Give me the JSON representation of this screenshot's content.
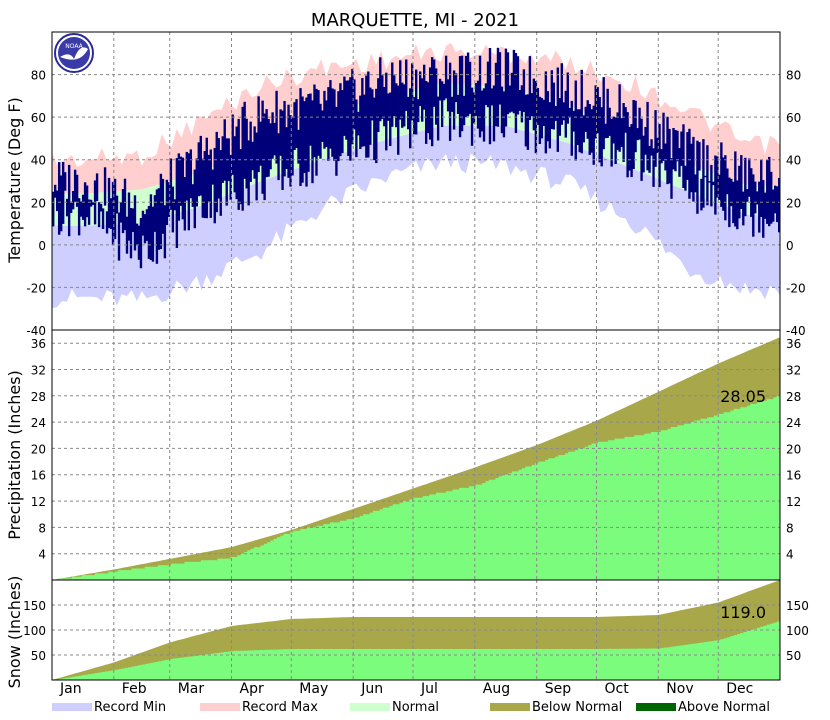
{
  "colors": {
    "record_min": "#cfcfff",
    "record_max": "#ffcfcf",
    "normal": "#cfffcf",
    "actual": "#00007a",
    "precip_normal": "#a8a84a",
    "precip_actual": "#7cfc7c",
    "above_normal": "#006400",
    "grid": "#888888"
  },
  "logo_text": "NOAA",
  "chart_data": [
    {
      "type": "area",
      "title": "MARQUETTE, MI - 2021",
      "ylabel": "Temperature (Deg F)",
      "ylim": [
        -40,
        100
      ],
      "yticks": [
        -40,
        -20,
        0,
        20,
        40,
        60,
        80
      ],
      "grid": true,
      "months": [
        "Jan",
        "Feb",
        "Mar",
        "Apr",
        "May",
        "Jun",
        "Jul",
        "Aug",
        "Sep",
        "Oct",
        "Nov",
        "Dec"
      ],
      "record_max_monthly": [
        45,
        47,
        63,
        80,
        88,
        92,
        96,
        95,
        91,
        82,
        68,
        52
      ],
      "normal_high_monthly": [
        24,
        26,
        34,
        46,
        60,
        70,
        76,
        74,
        66,
        52,
        38,
        28
      ],
      "normal_low_monthly": [
        9,
        10,
        18,
        30,
        40,
        49,
        56,
        56,
        48,
        37,
        25,
        14
      ],
      "record_min_monthly": [
        -30,
        -31,
        -22,
        -8,
        12,
        26,
        34,
        32,
        24,
        8,
        -16,
        -26
      ],
      "actual_high_monthly": [
        30,
        18,
        42,
        62,
        66,
        78,
        80,
        82,
        74,
        64,
        44,
        32
      ],
      "actual_low_monthly": [
        15,
        -4,
        18,
        30,
        40,
        50,
        58,
        56,
        50,
        42,
        26,
        14
      ]
    },
    {
      "type": "area",
      "ylabel": "Precipitation (Inches)",
      "ylim": [
        0,
        38
      ],
      "yticks": [
        4,
        8,
        12,
        16,
        20,
        24,
        28,
        32,
        36
      ],
      "grid": true,
      "annotation": "28.05",
      "normal_cumulative_month_end": [
        1.6,
        3.2,
        5.0,
        7.6,
        10.8,
        13.9,
        17.1,
        20.5,
        24.2,
        28.6,
        32.9,
        36.9
      ],
      "actual_cumulative_month_end": [
        1.3,
        2.4,
        3.4,
        7.4,
        9.4,
        12.4,
        14.4,
        17.8,
        20.9,
        22.6,
        25.2,
        28.05
      ]
    },
    {
      "type": "area",
      "ylabel": "Snow (Inches)",
      "ylim": [
        0,
        200
      ],
      "yticks": [
        50,
        100,
        150
      ],
      "grid": true,
      "annotation": "119.0",
      "normal_cumulative_month_end": [
        35,
        75,
        108,
        122,
        126,
        126,
        126,
        126,
        126,
        130,
        155,
        200
      ],
      "actual_cumulative_month_end": [
        20,
        42,
        58,
        62,
        62,
        62,
        62,
        62,
        62,
        63,
        80,
        119
      ]
    }
  ],
  "legend": [
    {
      "label": "Record Min",
      "color": "#cfcfff"
    },
    {
      "label": "Record Max",
      "color": "#ffcfcf"
    },
    {
      "label": "Normal",
      "color": "#cfffcf"
    },
    {
      "label": "Below Normal",
      "color": "#a8a84a"
    },
    {
      "label": "Above Normal",
      "color": "#006400"
    }
  ]
}
